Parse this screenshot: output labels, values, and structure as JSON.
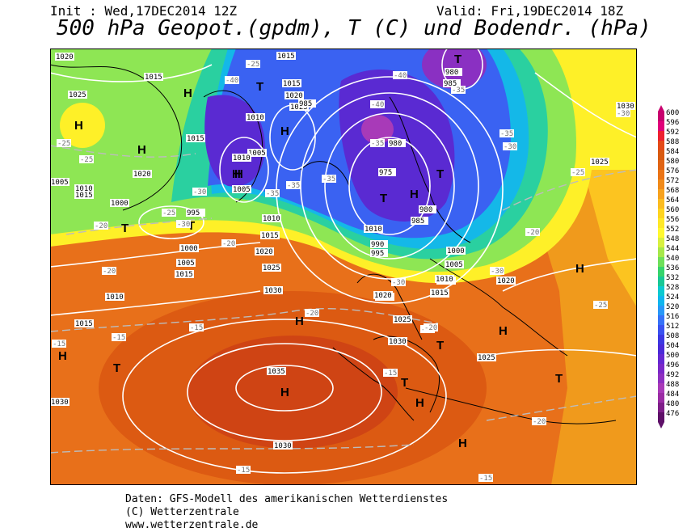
{
  "header": {
    "init": "Init : Wed,17DEC2014 12Z",
    "valid": "Valid: Fri,19DEC2014 18Z",
    "title": "500 hPa Geopot.(gpdm), T (C) und Bodendr. (hPa)"
  },
  "footer": {
    "line1": "Daten: GFS-Modell des amerikanischen Wetterdienstes",
    "line2": "(C) Wetterzentrale",
    "line3": "www.wetterzentrale.de"
  },
  "legend": {
    "ticks": [
      "600",
      "596",
      "592",
      "588",
      "584",
      "580",
      "576",
      "572",
      "568",
      "564",
      "560",
      "556",
      "552",
      "548",
      "544",
      "540",
      "536",
      "532",
      "528",
      "524",
      "520",
      "516",
      "512",
      "508",
      "504",
      "500",
      "496",
      "492",
      "488",
      "484",
      "480",
      "476"
    ],
    "colors": [
      "#c8006e",
      "#e0007a",
      "#ee2030",
      "#e44a18",
      "#d85a10",
      "#e06414",
      "#ea7416",
      "#f08a1a",
      "#f7a21e",
      "#fbbc20",
      "#fed420",
      "#fee828",
      "#fff830",
      "#d8f040",
      "#a6e84a",
      "#6ee05a",
      "#36d46c",
      "#18c896",
      "#0ccad0",
      "#10b6ee",
      "#2898f8",
      "#3672f8",
      "#3a52f0",
      "#3c38e2",
      "#4a2ad8",
      "#6428d2",
      "#7a28c8",
      "#8e30c0",
      "#a83ab8",
      "#9a2ca4",
      "#7e1e88",
      "#5e1068"
    ]
  },
  "labels": {
    "highs": [
      "H",
      "H",
      "H",
      "H",
      "H",
      "H",
      "H",
      "H",
      "H",
      "H",
      "H",
      "H",
      "H",
      "H"
    ],
    "lows": [
      "T",
      "T",
      "T",
      "T",
      "T",
      "T",
      "T",
      "T",
      "T",
      "T"
    ],
    "isobars": [
      "1020",
      "1015",
      "1025",
      "1020",
      "1015",
      "1015",
      "1015",
      "1020",
      "1025",
      "1010",
      "1005",
      "1010",
      "1005",
      "1000",
      "995",
      "1010",
      "1015",
      "1020",
      "1025",
      "1030",
      "1035",
      "1030",
      "1025",
      "1030",
      "1020",
      "1015",
      "1010",
      "1005",
      "1000",
      "1005",
      "1010",
      "1015",
      "985",
      "980",
      "975",
      "980",
      "985",
      "990",
      "995",
      "1000",
      "1005",
      "1010",
      "985",
      "980",
      "1025",
      "1030",
      "1010",
      "1015",
      "1020",
      "1025",
      "1030",
      "1015",
      "1010",
      "1015",
      "1020"
    ],
    "temps": [
      "-25",
      "-25",
      "-20",
      "-20",
      "-15",
      "-15",
      "-15",
      "-15",
      "-20",
      "-20",
      "-25",
      "-30",
      "-30",
      "-35",
      "-35",
      "-35",
      "-35",
      "-40",
      "-40",
      "-40",
      "-35",
      "-30",
      "-35",
      "-30",
      "-25",
      "-30",
      "-25",
      "-20",
      "-20",
      "-15",
      "-15",
      "-20",
      "-20",
      "-25",
      "-30"
    ]
  }
}
